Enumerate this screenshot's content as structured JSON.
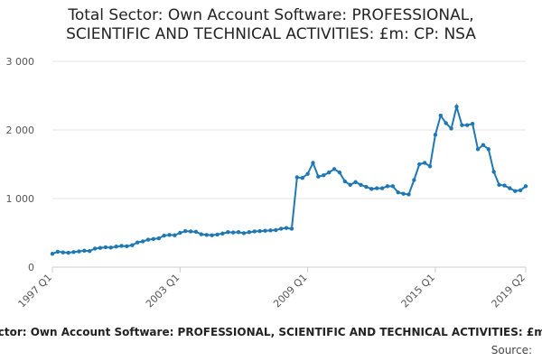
{
  "chart_data": {
    "type": "line",
    "title": "Total Sector: Own Account Software: PROFESSIONAL, SCIENTIFIC AND TECHNICAL ACTIVITIES: £m: CP: NSA",
    "xlabel": "",
    "ylabel": "",
    "ylim": [
      0,
      3000
    ],
    "yticks": [
      "0",
      "1 000",
      "2 000",
      "3 000"
    ],
    "xticks": [
      "1997 Q1",
      "2003 Q1",
      "2009 Q1",
      "2015 Q1",
      "2019 Q2"
    ],
    "grid": "horizontal",
    "legend": "none",
    "line_color": "#1f77b4",
    "x": [
      "1997 Q1",
      "1997 Q2",
      "1997 Q3",
      "1997 Q4",
      "1998 Q1",
      "1998 Q2",
      "1998 Q3",
      "1998 Q4",
      "1999 Q1",
      "1999 Q2",
      "1999 Q3",
      "1999 Q4",
      "2000 Q1",
      "2000 Q2",
      "2000 Q3",
      "2000 Q4",
      "2001 Q1",
      "2001 Q2",
      "2001 Q3",
      "2001 Q4",
      "2002 Q1",
      "2002 Q2",
      "2002 Q3",
      "2002 Q4",
      "2003 Q1",
      "2003 Q2",
      "2003 Q3",
      "2003 Q4",
      "2004 Q1",
      "2004 Q2",
      "2004 Q3",
      "2004 Q4",
      "2005 Q1",
      "2005 Q2",
      "2005 Q3",
      "2005 Q4",
      "2006 Q1",
      "2006 Q2",
      "2006 Q3",
      "2006 Q4",
      "2007 Q1",
      "2007 Q2",
      "2007 Q3",
      "2007 Q4",
      "2008 Q1",
      "2008 Q2",
      "2008 Q3",
      "2008 Q4",
      "2009 Q1",
      "2009 Q2",
      "2009 Q3",
      "2009 Q4",
      "2010 Q1",
      "2010 Q2",
      "2010 Q3",
      "2010 Q4",
      "2011 Q1",
      "2011 Q2",
      "2011 Q3",
      "2011 Q4",
      "2012 Q1",
      "2012 Q2",
      "2012 Q3",
      "2012 Q4",
      "2013 Q1",
      "2013 Q2",
      "2013 Q3",
      "2013 Q4",
      "2014 Q1",
      "2014 Q2",
      "2014 Q3",
      "2014 Q4",
      "2015 Q1",
      "2015 Q2",
      "2015 Q3",
      "2015 Q4",
      "2016 Q1",
      "2016 Q2",
      "2016 Q3",
      "2016 Q4",
      "2017 Q1",
      "2017 Q2",
      "2017 Q3",
      "2017 Q4",
      "2018 Q1",
      "2018 Q2",
      "2018 Q3",
      "2018 Q4",
      "2019 Q1",
      "2019 Q2"
    ],
    "values": [
      195,
      225,
      215,
      210,
      220,
      230,
      240,
      235,
      270,
      280,
      290,
      285,
      300,
      310,
      305,
      320,
      360,
      375,
      400,
      410,
      420,
      460,
      470,
      465,
      500,
      525,
      520,
      515,
      480,
      470,
      465,
      475,
      490,
      510,
      505,
      510,
      495,
      510,
      520,
      525,
      530,
      535,
      540,
      560,
      570,
      560,
      1310,
      1300,
      1360,
      1520,
      1320,
      1340,
      1380,
      1430,
      1380,
      1250,
      1200,
      1240,
      1200,
      1170,
      1140,
      1150,
      1150,
      1180,
      1180,
      1090,
      1070,
      1060,
      1270,
      1500,
      1520,
      1470,
      1930,
      2210,
      2100,
      2020,
      2340,
      2070,
      2070,
      2090,
      1720,
      1780,
      1720,
      1390,
      1200,
      1190,
      1150,
      1110,
      1120,
      1180
    ]
  },
  "footer": {
    "caption": "Total Sector: Own Account Software: PROFESSIONAL, SCIENTIFIC AND TECHNICAL ACTIVITIES: £m: CP: NSA",
    "source": "Source:"
  }
}
